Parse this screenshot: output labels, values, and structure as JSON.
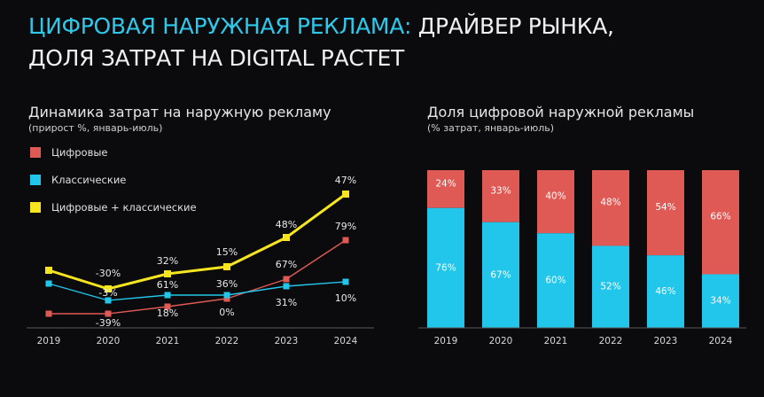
{
  "header": {
    "title_accent": "ЦИФРОВАЯ НАРУЖНАЯ РЕКЛАМА:",
    "title_rest": " ДРАЙВЕР РЫНКА,",
    "title_line2": "ДОЛЯ ЗАТРАТ НА DIGITAL РАСТЕТ"
  },
  "colors": {
    "digital": "#e05a55",
    "classic": "#22c6ea",
    "total": "#f7e61f"
  },
  "chart_data": [
    {
      "type": "line",
      "title": "Динамика затрат на наружную рекламу",
      "subtitle": "(прирост %, январь-июль)",
      "categories": [
        "2019",
        "2020",
        "2021",
        "2022",
        "2023",
        "2024"
      ],
      "series": [
        {
          "name": "Цифровые",
          "values": [
            null,
            -39,
            18,
            0,
            31,
            79
          ],
          "labels": [
            "",
            "-39%",
            "18%",
            "0%",
            "31%",
            "79%"
          ]
        },
        {
          "name": "Классические",
          "values": [
            null,
            -3,
            61,
            36,
            67,
            10
          ],
          "labels": [
            "",
            "-3%",
            "61%",
            "36%",
            "67%",
            "10%"
          ]
        },
        {
          "name": "Цифровые + классические",
          "values": [
            null,
            -30,
            32,
            15,
            48,
            47
          ],
          "labels": [
            "",
            "-30%",
            "32%",
            "15%",
            "48%",
            "47%"
          ]
        }
      ]
    },
    {
      "type": "bar",
      "stacked": true,
      "title": "Доля цифровой наружной рекламы",
      "subtitle": "(% затрат, январь-июль)",
      "categories": [
        "2019",
        "2020",
        "2021",
        "2022",
        "2023",
        "2024"
      ],
      "series": [
        {
          "name": "Классические",
          "values": [
            76,
            67,
            60,
            52,
            46,
            34
          ],
          "labels": [
            "76%",
            "67%",
            "60%",
            "52%",
            "46%",
            "34%"
          ]
        },
        {
          "name": "Цифровые",
          "values": [
            24,
            33,
            40,
            48,
            54,
            66
          ],
          "labels": [
            "24%",
            "33%",
            "40%",
            "48%",
            "54%",
            "66%"
          ]
        }
      ]
    }
  ]
}
